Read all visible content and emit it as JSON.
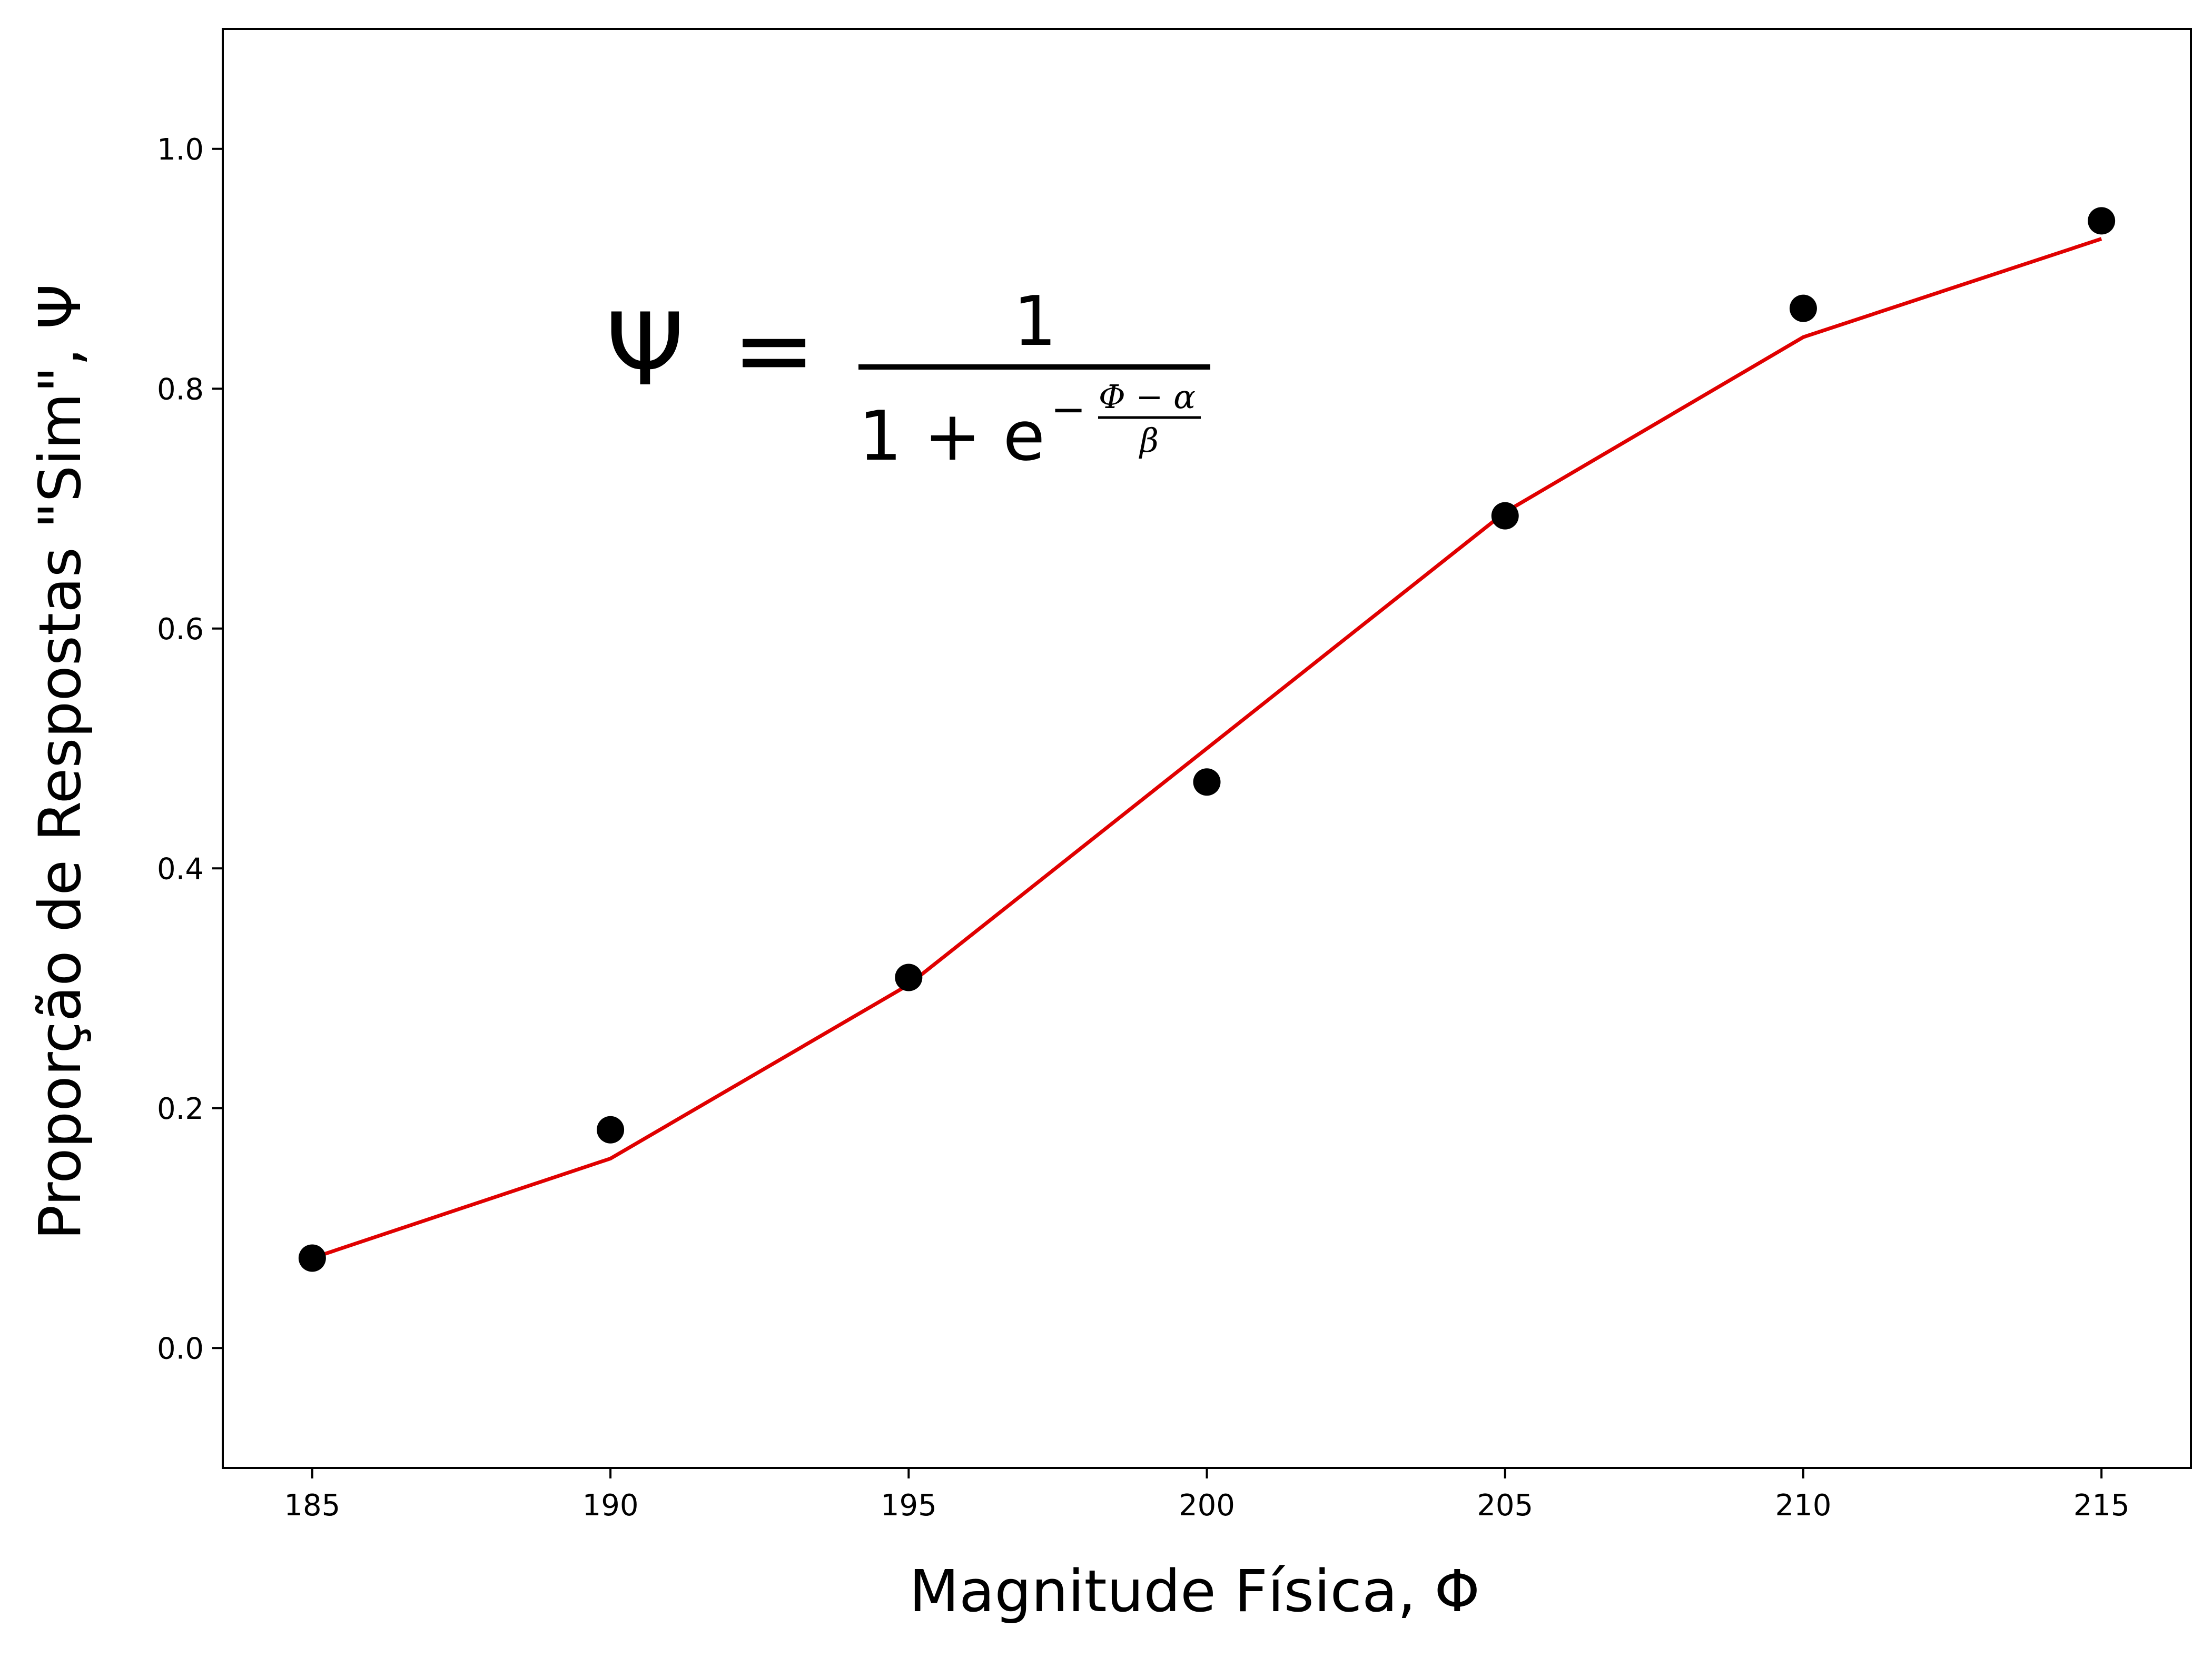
{
  "chart_data": {
    "type": "scatter",
    "xlabel": "Magnitude Física, Φ",
    "ylabel": "Proporção de Respostas \"Sim\", Ψ",
    "xlim": [
      183.5,
      216.5
    ],
    "ylim": [
      -0.1,
      1.1
    ],
    "x_ticks": [
      185,
      190,
      195,
      200,
      205,
      210,
      215
    ],
    "y_ticks": [
      0.0,
      0.2,
      0.4,
      0.6,
      0.8,
      1.0
    ],
    "y_tick_labels": [
      "0.0",
      "0.2",
      "0.4",
      "0.6",
      "0.8",
      "1.0"
    ],
    "grid": false,
    "series": [
      {
        "kind": "points",
        "color": "#000000",
        "x": [
          185,
          190,
          195,
          200,
          205,
          210,
          215
        ],
        "y": [
          0.075,
          0.182,
          0.309,
          0.472,
          0.694,
          0.867,
          0.94
        ]
      },
      {
        "kind": "line",
        "color": "#e00000",
        "x": [
          185,
          190,
          195,
          200,
          205,
          210,
          215
        ],
        "y": [
          0.075,
          0.158,
          0.303,
          0.5,
          0.697,
          0.843,
          0.925
        ]
      }
    ],
    "annotation": {
      "lhs": "Ψ",
      "equals": "=",
      "numerator": "1",
      "denominator_base": "1 + e",
      "exponent_sign": "−",
      "exponent_numerator": "Φ − α",
      "exponent_denominator": "β"
    }
  }
}
